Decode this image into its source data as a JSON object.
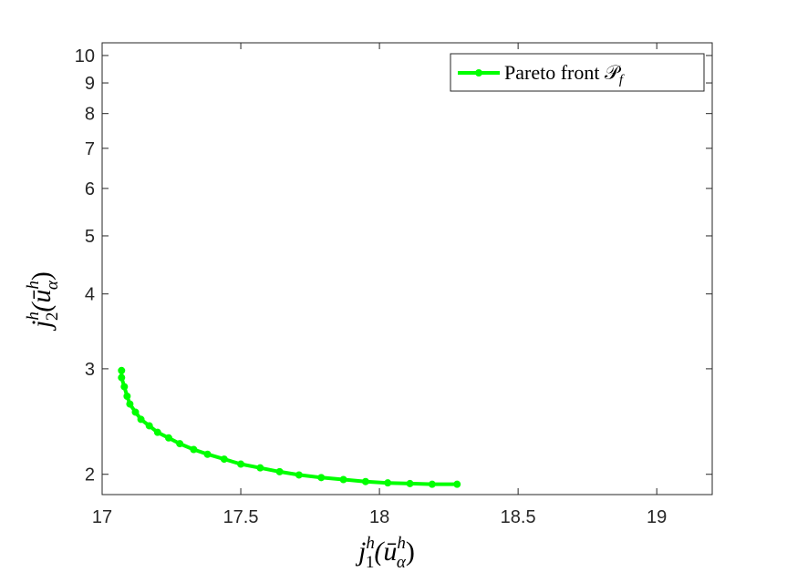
{
  "chart_data": {
    "type": "line",
    "title": "",
    "xlabel": "j_1^h(ū_α^h)",
    "ylabel": "j_2^h(ū_α^h)",
    "xlim": [
      17,
      19.2
    ],
    "ylim": [
      1.85,
      10.5
    ],
    "yscale": "log",
    "grid": false,
    "legend_position": "top-right",
    "x_ticks": [
      "17",
      "17.5",
      "18",
      "18.5",
      "19"
    ],
    "y_ticks": [
      "2",
      "3",
      "4",
      "5",
      "6",
      "7",
      "8",
      "9",
      "10"
    ],
    "series": [
      {
        "name": "Pareto front 𝒫_f",
        "color": "#00ff00",
        "marker": "circle",
        "x": [
          17.07,
          17.07,
          17.08,
          17.09,
          17.1,
          17.12,
          17.14,
          17.17,
          17.2,
          17.24,
          17.28,
          17.33,
          17.38,
          17.44,
          17.5,
          17.57,
          17.64,
          17.71,
          17.79,
          17.87,
          17.95,
          18.03,
          18.11,
          18.19,
          18.28
        ],
        "y": [
          2.98,
          2.9,
          2.8,
          2.7,
          2.62,
          2.54,
          2.47,
          2.41,
          2.35,
          2.3,
          2.25,
          2.2,
          2.16,
          2.12,
          2.08,
          2.05,
          2.02,
          1.995,
          1.975,
          1.96,
          1.945,
          1.935,
          1.93,
          1.925,
          1.925
        ]
      }
    ]
  },
  "labels": {
    "x_main": "j",
    "x_sup": "h",
    "x_sub": "1",
    "x_arg": "(ū",
    "x_arg_sup": "h",
    "x_arg_sub": "α",
    "x_close": ")",
    "y_main": "j",
    "y_sup": "h",
    "y_sub": "2",
    "y_arg": "(ū",
    "y_arg_sup": "h",
    "y_arg_sub": "α",
    "y_close": ")",
    "legend_text": "Pareto front 𝒫",
    "legend_sub": "f"
  }
}
